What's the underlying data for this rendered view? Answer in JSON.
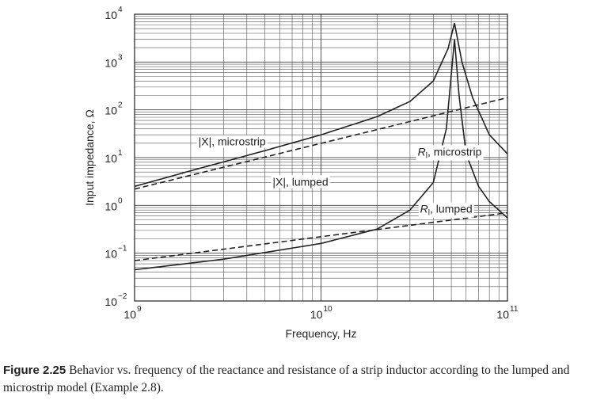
{
  "caption": {
    "label": "Figure 2.25",
    "text": "Behavior vs. frequency of the reactance and resistance of a strip inductor according to the lumped and microstrip model (Example  2.8)."
  },
  "chart_data": {
    "type": "line",
    "title": "",
    "xlabel": "Frequency, Hz",
    "ylabel": "Input impedance, Ω",
    "xscale": "log",
    "yscale": "log",
    "xlim": [
      1000000000.0,
      100000000000.0
    ],
    "ylim": [
      0.01,
      10000
    ],
    "grid": true,
    "x_ticks": [
      {
        "base": "10",
        "exp": "9"
      },
      {
        "base": "10",
        "exp": "10"
      },
      {
        "base": "10",
        "exp": "11"
      }
    ],
    "y_ticks": [
      {
        "base": "10",
        "exp": "−2"
      },
      {
        "base": "10",
        "exp": "−1"
      },
      {
        "base": "10",
        "exp": "0"
      },
      {
        "base": "10",
        "exp": "1"
      },
      {
        "base": "10",
        "exp": "2"
      },
      {
        "base": "10",
        "exp": "3"
      },
      {
        "base": "10",
        "exp": "4"
      }
    ],
    "series": [
      {
        "name": "|X|, microstrip",
        "style": "solid",
        "color": "#222222",
        "points": [
          [
            1000000000.0,
            2.5
          ],
          [
            2000000000.0,
            5.3
          ],
          [
            5000000000.0,
            14
          ],
          [
            10000000000.0,
            30
          ],
          [
            20000000000.0,
            72
          ],
          [
            30000000000.0,
            150
          ],
          [
            40000000000.0,
            400
          ],
          [
            48000000000.0,
            1900
          ],
          [
            52000000000.0,
            6500
          ],
          [
            57000000000.0,
            1000
          ],
          [
            65000000000.0,
            180
          ],
          [
            80000000000.0,
            30
          ],
          [
            100000000000.0,
            12
          ]
        ]
      },
      {
        "name": "|X|, lumped",
        "style": "dashed",
        "color": "#222222",
        "points": [
          [
            1000000000.0,
            2.2
          ],
          [
            100000000000.0,
            180
          ]
        ]
      },
      {
        "name": "R_l, microstrip",
        "style": "solid",
        "color": "#222222",
        "points": [
          [
            1000000000.0,
            0.045
          ],
          [
            3000000000.0,
            0.075
          ],
          [
            10000000000.0,
            0.16
          ],
          [
            20000000000.0,
            0.32
          ],
          [
            30000000000.0,
            0.8
          ],
          [
            40000000000.0,
            3
          ],
          [
            47000000000.0,
            40
          ],
          [
            52000000000.0,
            3000
          ],
          [
            55000000000.0,
            200
          ],
          [
            60000000000.0,
            12
          ],
          [
            70000000000.0,
            2.5
          ],
          [
            80000000000.0,
            1.2
          ],
          [
            100000000000.0,
            0.55
          ]
        ]
      },
      {
        "name": "R_l, lumped",
        "style": "dashed",
        "color": "#222222",
        "points": [
          [
            1000000000.0,
            0.07
          ],
          [
            100000000000.0,
            0.7
          ]
        ]
      }
    ],
    "annotations": [
      {
        "text": "|X|, microstrip",
        "at": [
          2200000000.0,
          18
        ]
      },
      {
        "text": "|X|, lumped",
        "at": [
          5500000000.0,
          2.6
        ]
      },
      {
        "text": "R_l, microstrip",
        "at": [
          33000000000.0,
          11
        ]
      },
      {
        "text": "R_l, lumped",
        "at": [
          34000000000.0,
          0.7
        ]
      }
    ]
  }
}
